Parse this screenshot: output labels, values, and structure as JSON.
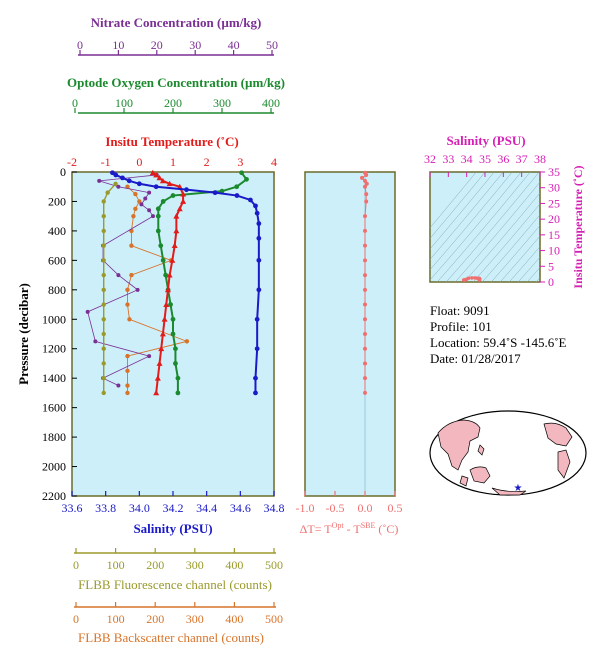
{
  "colors": {
    "plot_bg": "#cdeffa",
    "nitrate": "#7a2f93",
    "oxygen": "#1b8a2e",
    "temperature": "#e21b1b",
    "salinity": "#1a1ac8",
    "fluorescence": "#9a9a2c",
    "backscatter": "#d8742a",
    "delta_t": "#f07070",
    "ts_axis": "#d61fb5",
    "frame": "#6b6b2a"
  },
  "axes": {
    "nitrate_title": "Nitrate Concentration (µm/kg)",
    "nitrate_ticks": [
      "0",
      "10",
      "20",
      "30",
      "40",
      "50"
    ],
    "oxygen_title": "Optode Oxygen Concentration (µm/kg)",
    "oxygen_ticks": [
      "0",
      "100",
      "200",
      "300",
      "400"
    ],
    "temperature_title": "Insitu Temperature (˚C)",
    "temperature_ticks": [
      "-2",
      "-1",
      "0",
      "1",
      "2",
      "3",
      "4"
    ],
    "pressure_title": "Pressure (decibar)",
    "pressure_ticks": [
      "0",
      "200",
      "400",
      "600",
      "800",
      "1000",
      "1200",
      "1400",
      "1600",
      "1800",
      "2000",
      "2200"
    ],
    "salinity_title": "Salinity (PSU)",
    "salinity_ticks": [
      "33.6",
      "33.8",
      "34.0",
      "34.2",
      "34.4",
      "34.6",
      "34.8"
    ],
    "fluorescence_title": "FLBB Fluorescence channel (counts)",
    "fluorescence_ticks": [
      "0",
      "100",
      "200",
      "300",
      "400",
      "500"
    ],
    "backscatter_title": "FLBB Backscatter channel (counts)",
    "backscatter_ticks": [
      "0",
      "100",
      "200",
      "300",
      "400",
      "500"
    ],
    "delta_title": "ΔT= T",
    "delta_sup1": "Opt",
    "delta_mid": " - T",
    "delta_sup2": "SBE",
    "delta_unit": " (˚C)",
    "delta_ticks": [
      "-1.0",
      "-0.5",
      "0.0",
      "0.5"
    ],
    "ts_title": "Salinity (PSU)",
    "ts_x_ticks": [
      "32",
      "33",
      "34",
      "35",
      "36",
      "37",
      "38"
    ],
    "ts_y_title": "Insitu Temperature (˚C)",
    "ts_y_ticks": [
      "0",
      "5",
      "10",
      "15",
      "20",
      "25",
      "30",
      "35"
    ]
  },
  "info": {
    "float": "Float:  9091",
    "profile": "Profile:  101",
    "location": "Location:  59.4˚S  -145.6˚E",
    "date": "Date:  01/28/2017"
  },
  "chart_data": {
    "type": "line",
    "y_axis": "Pressure (decibar)",
    "ylim": [
      2200,
      0
    ],
    "series": [
      {
        "name": "Salinity (PSU)",
        "xlim": [
          33.6,
          34.8
        ],
        "points": [
          [
            33.84,
            5
          ],
          [
            33.86,
            20
          ],
          [
            33.9,
            40
          ],
          [
            33.94,
            60
          ],
          [
            34.0,
            80
          ],
          [
            34.1,
            100
          ],
          [
            34.28,
            120
          ],
          [
            34.45,
            140
          ],
          [
            34.58,
            160
          ],
          [
            34.66,
            190
          ],
          [
            34.69,
            230
          ],
          [
            34.7,
            280
          ],
          [
            34.71,
            350
          ],
          [
            34.71,
            450
          ],
          [
            34.71,
            600
          ],
          [
            34.71,
            800
          ],
          [
            34.7,
            1000
          ],
          [
            34.7,
            1200
          ],
          [
            34.69,
            1400
          ],
          [
            34.69,
            1500
          ]
        ]
      },
      {
        "name": "Insitu Temperature (˚C)",
        "xlim": [
          -2,
          4
        ],
        "points": [
          [
            0.4,
            5
          ],
          [
            0.5,
            20
          ],
          [
            0.6,
            40
          ],
          [
            0.7,
            60
          ],
          [
            0.9,
            80
          ],
          [
            1.2,
            100
          ],
          [
            1.3,
            150
          ],
          [
            1.3,
            200
          ],
          [
            1.2,
            250
          ],
          [
            1.1,
            300
          ],
          [
            1.1,
            400
          ],
          [
            1.05,
            500
          ],
          [
            0.98,
            600
          ],
          [
            0.9,
            700
          ],
          [
            0.85,
            800
          ],
          [
            0.8,
            900
          ],
          [
            0.75,
            1000
          ],
          [
            0.7,
            1100
          ],
          [
            0.65,
            1200
          ],
          [
            0.6,
            1300
          ],
          [
            0.55,
            1400
          ],
          [
            0.5,
            1500
          ]
        ]
      },
      {
        "name": "Optode Oxygen Concentration (µm/kg)",
        "xlim": [
          0,
          400
        ],
        "points": [
          [
            340,
            5
          ],
          [
            350,
            50
          ],
          [
            330,
            100
          ],
          [
            300,
            130
          ],
          [
            200,
            160
          ],
          [
            180,
            200
          ],
          [
            170,
            250
          ],
          [
            170,
            300
          ],
          [
            170,
            400
          ],
          [
            175,
            500
          ],
          [
            180,
            600
          ],
          [
            185,
            700
          ],
          [
            190,
            800
          ],
          [
            195,
            900
          ],
          [
            200,
            1000
          ],
          [
            200,
            1100
          ],
          [
            205,
            1200
          ],
          [
            205,
            1300
          ],
          [
            210,
            1400
          ],
          [
            210,
            1500
          ]
        ]
      },
      {
        "name": "Nitrate Concentration (µm/kg)",
        "xlim": [
          0,
          50
        ],
        "points": [
          [
            20,
            20
          ],
          [
            5,
            60
          ],
          [
            10,
            100
          ],
          [
            18,
            140
          ],
          [
            17,
            180
          ],
          [
            16,
            220
          ],
          [
            18,
            260
          ],
          [
            19,
            300
          ],
          [
            6,
            500
          ],
          [
            6,
            600
          ],
          [
            10,
            700
          ],
          [
            15,
            800
          ],
          [
            2,
            950
          ],
          [
            4,
            1150
          ],
          [
            18,
            1250
          ],
          [
            6,
            1400
          ],
          [
            10,
            1450
          ]
        ]
      },
      {
        "name": "FLBB Fluorescence channel (counts)",
        "xlim": [
          0,
          500
        ],
        "points": [
          [
            100,
            80
          ],
          [
            80,
            140
          ],
          [
            70,
            200
          ],
          [
            70,
            300
          ],
          [
            70,
            400
          ],
          [
            70,
            500
          ],
          [
            70,
            600
          ],
          [
            70,
            700
          ],
          [
            70,
            800
          ],
          [
            70,
            900
          ],
          [
            70,
            1000
          ],
          [
            70,
            1100
          ],
          [
            70,
            1200
          ],
          [
            70,
            1300
          ],
          [
            70,
            1400
          ],
          [
            70,
            1500
          ]
        ]
      },
      {
        "name": "FLBB Backscatter channel (counts)",
        "xlim": [
          0,
          500
        ],
        "points": [
          [
            130,
            100
          ],
          [
            150,
            150
          ],
          [
            160,
            200
          ],
          [
            150,
            250
          ],
          [
            145,
            300
          ],
          [
            140,
            400
          ],
          [
            140,
            500
          ],
          [
            240,
            600
          ],
          [
            140,
            700
          ],
          [
            130,
            800
          ],
          [
            130,
            900
          ],
          [
            135,
            1000
          ],
          [
            280,
            1150
          ],
          [
            130,
            1250
          ],
          [
            130,
            1350
          ],
          [
            130,
            1450
          ],
          [
            130,
            1500
          ]
        ]
      },
      {
        "name": "ΔT",
        "xlim": [
          -1.0,
          0.5
        ],
        "points": [
          [
            0.0,
            5
          ],
          [
            0.02,
            20
          ],
          [
            -0.05,
            40
          ],
          [
            0.0,
            60
          ],
          [
            0.03,
            80
          ],
          [
            0.0,
            100
          ],
          [
            0.02,
            150
          ],
          [
            0.02,
            200
          ],
          [
            0.0,
            300
          ],
          [
            0.0,
            400
          ],
          [
            0.0,
            500
          ],
          [
            0.0,
            600
          ],
          [
            0.0,
            700
          ],
          [
            0.0,
            800
          ],
          [
            0.0,
            900
          ],
          [
            0.0,
            1000
          ],
          [
            0.0,
            1100
          ],
          [
            0.0,
            1200
          ],
          [
            0.0,
            1300
          ],
          [
            0.0,
            1400
          ],
          [
            0.0,
            1500
          ]
        ]
      }
    ]
  }
}
